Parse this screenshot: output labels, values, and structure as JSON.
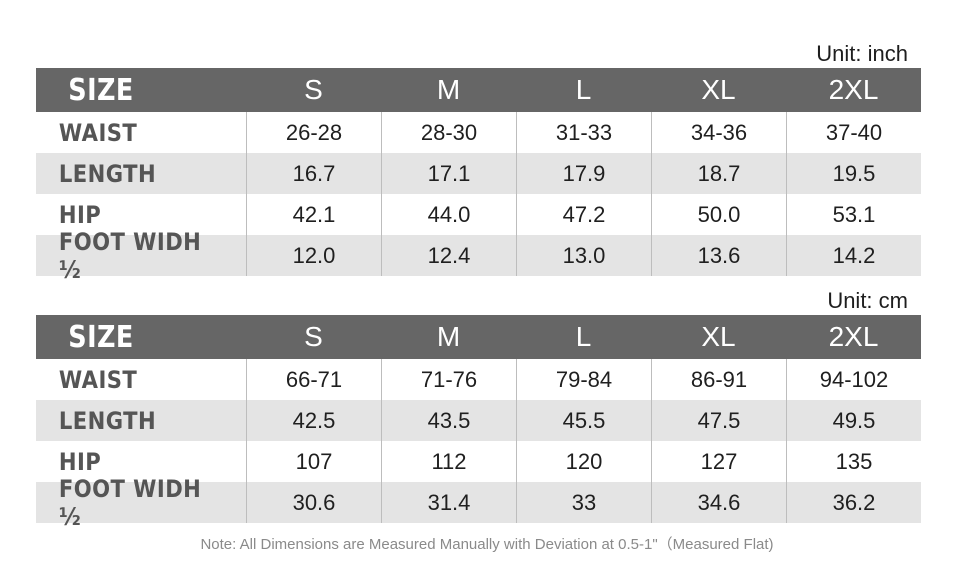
{
  "inch_table": {
    "unit_label": "Unit: inch",
    "header": [
      "SIZE",
      "S",
      "M",
      "L",
      "XL",
      "2XL"
    ],
    "rows": [
      {
        "label": "WAIST",
        "values": [
          "26-28",
          "28-30",
          "31-33",
          "34-36",
          "37-40"
        ]
      },
      {
        "label": "LENGTH",
        "values": [
          "16.7",
          "17.1",
          "17.9",
          "18.7",
          "19.5"
        ]
      },
      {
        "label": "HIP",
        "values": [
          "42.1",
          "44.0",
          "47.2",
          "50.0",
          "53.1"
        ]
      },
      {
        "label": "FOOT WIDH ½",
        "values": [
          "12.0",
          "12.4",
          "13.0",
          "13.6",
          "14.2"
        ]
      }
    ]
  },
  "cm_table": {
    "unit_label": "Unit: cm",
    "header": [
      "SIZE",
      "S",
      "M",
      "L",
      "XL",
      "2XL"
    ],
    "rows": [
      {
        "label": "WAIST",
        "values": [
          "66-71",
          "71-76",
          "79-84",
          "86-91",
          "94-102"
        ]
      },
      {
        "label": "LENGTH",
        "values": [
          "42.5",
          "43.5",
          "45.5",
          "47.5",
          "49.5"
        ]
      },
      {
        "label": "HIP",
        "values": [
          "107",
          "112",
          "120",
          "127",
          "135"
        ]
      },
      {
        "label": "FOOT WIDH ½",
        "values": [
          "30.6",
          "31.4",
          "33",
          "34.6",
          "36.2"
        ]
      }
    ]
  },
  "note": "Note: All Dimensions are Measured Manually with Deviation at 0.5-1\"（Measured Flat)",
  "colors": {
    "header_bg": "#666666",
    "stripe_bg": "#e4e4e4",
    "label_text": "#555555"
  }
}
